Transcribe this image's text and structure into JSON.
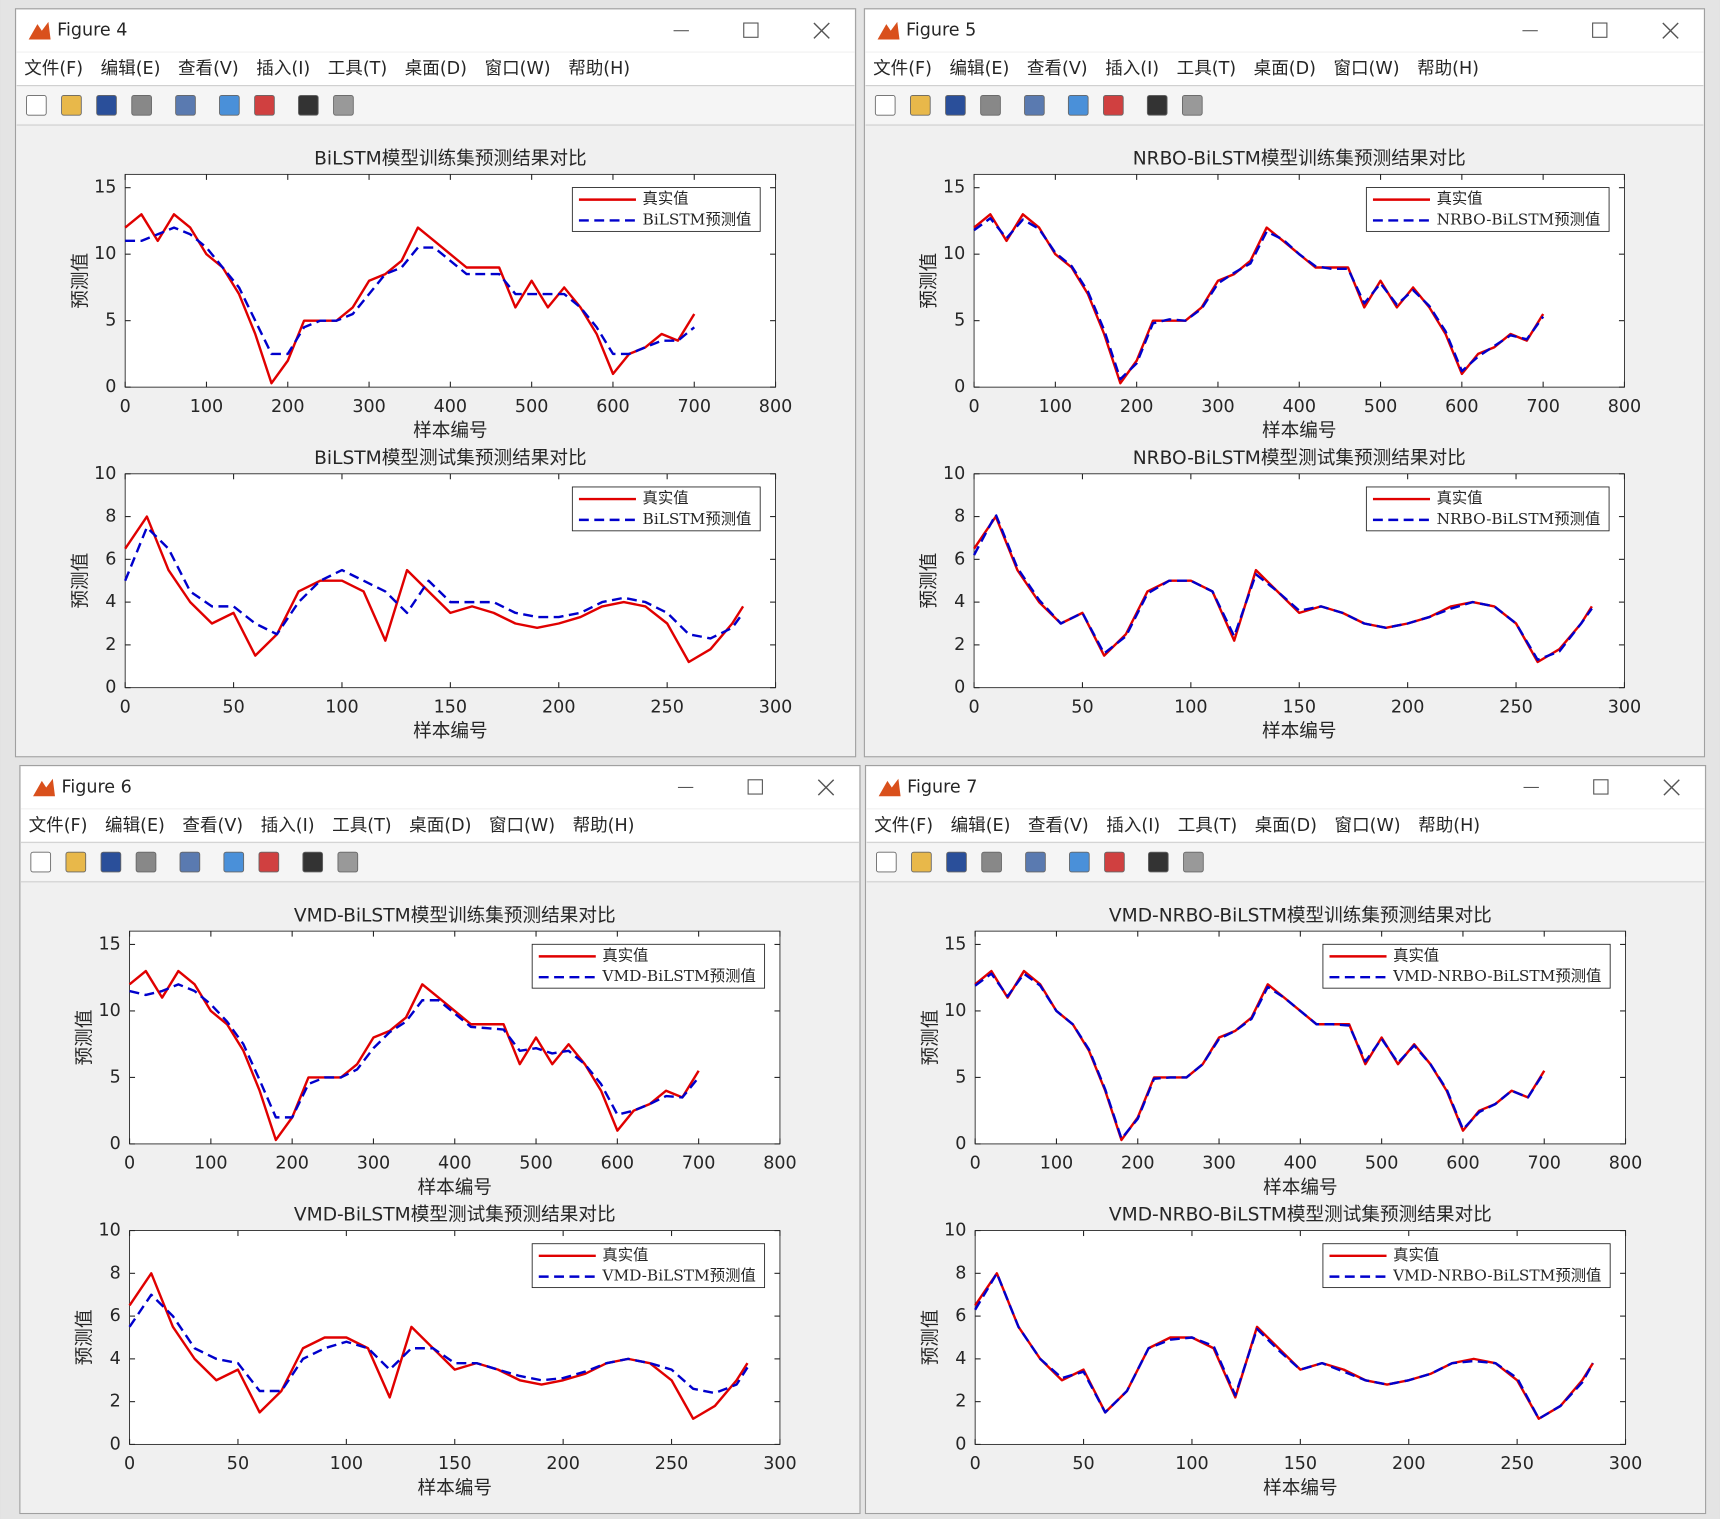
{
  "windows": [
    {
      "title": "Figure 4",
      "menu": [
        "文件(F)",
        "编辑(E)",
        "查看(V)",
        "插入(I)",
        "工具(T)",
        "桌面(D)",
        "窗口(W)",
        "帮助(H)"
      ]
    },
    {
      "title": "Figure 5",
      "menu": [
        "文件(F)",
        "编辑(E)",
        "查看(V)",
        "插入(I)",
        "工具(T)",
        "桌面(D)",
        "窗口(W)",
        "帮助(H)"
      ]
    },
    {
      "title": "Figure 6",
      "menu": [
        "文件(F)",
        "编辑(E)",
        "查看(V)",
        "插入(I)",
        "工具(T)",
        "桌面(D)",
        "窗口(W)",
        "帮助(H)"
      ]
    },
    {
      "title": "Figure 7",
      "menu": [
        "文件(F)",
        "编辑(E)",
        "查看(V)",
        "插入(I)",
        "工具(T)",
        "桌面(D)",
        "窗口(W)",
        "帮助(H)"
      ]
    }
  ],
  "chart_data": [
    {
      "type": "line",
      "title": "BiLSTM模型训练集预测结果对比",
      "xlabel": "样本编号",
      "ylabel": "预测值",
      "legend": "upper right",
      "xlim": [
        0,
        800
      ],
      "xticks": [
        0,
        100,
        200,
        300,
        400,
        500,
        600,
        700,
        800
      ],
      "ylim": [
        0,
        16
      ],
      "yticks": [
        0,
        5,
        10,
        15
      ],
      "x": [
        0,
        20,
        40,
        60,
        80,
        100,
        120,
        140,
        160,
        180,
        200,
        220,
        240,
        260,
        280,
        300,
        320,
        340,
        360,
        380,
        400,
        420,
        440,
        460,
        480,
        500,
        520,
        540,
        560,
        580,
        600,
        620,
        640,
        660,
        680,
        700
      ],
      "series": [
        {
          "name": "真实值",
          "color": "#e00000",
          "linestyle": "solid",
          "values": [
            12,
            13,
            11,
            13,
            12,
            10,
            9,
            7,
            4,
            0.3,
            2,
            5,
            5,
            5,
            6,
            8,
            8.5,
            9.5,
            12,
            11,
            10,
            9,
            9,
            9,
            6,
            8,
            6,
            7.5,
            6,
            4,
            1,
            2.5,
            3,
            4,
            3.5,
            5.5
          ]
        },
        {
          "name": "BiLSTM预测值",
          "color": "#0000cc",
          "linestyle": "dashed",
          "values": [
            11,
            11,
            11.5,
            12,
            11.5,
            10.5,
            9,
            7.5,
            5,
            2.5,
            2.5,
            4.5,
            5,
            5,
            5.5,
            7,
            8.5,
            9,
            10.5,
            10.5,
            9.5,
            8.5,
            8.5,
            8.5,
            7,
            7,
            7,
            7,
            6,
            4.5,
            2.5,
            2.5,
            3,
            3.5,
            3.5,
            4.5
          ]
        }
      ]
    },
    {
      "type": "line",
      "title": "BiLSTM模型测试集预测结果对比",
      "xlabel": "样本编号",
      "ylabel": "预测值",
      "legend": "upper right",
      "xlim": [
        0,
        300
      ],
      "xticks": [
        0,
        50,
        100,
        150,
        200,
        250,
        300
      ],
      "ylim": [
        0,
        10
      ],
      "yticks": [
        0,
        2,
        4,
        6,
        8,
        10
      ],
      "x": [
        0,
        10,
        20,
        30,
        40,
        50,
        60,
        70,
        80,
        90,
        100,
        110,
        120,
        130,
        140,
        150,
        160,
        170,
        180,
        190,
        200,
        210,
        220,
        230,
        240,
        250,
        260,
        270,
        280,
        285
      ],
      "series": [
        {
          "name": "真实值",
          "color": "#e00000",
          "linestyle": "solid",
          "values": [
            6.5,
            8,
            5.5,
            4,
            3,
            3.5,
            1.5,
            2.5,
            4.5,
            5,
            5,
            4.5,
            2.2,
            5.5,
            4.5,
            3.5,
            3.8,
            3.5,
            3,
            2.8,
            3,
            3.3,
            3.8,
            4,
            3.8,
            3,
            1.2,
            1.8,
            3,
            3.8
          ]
        },
        {
          "name": "BiLSTM预测值",
          "color": "#0000cc",
          "linestyle": "dashed",
          "values": [
            5,
            7.5,
            6.5,
            4.5,
            3.8,
            3.8,
            3,
            2.5,
            4,
            5,
            5.5,
            5,
            4.5,
            3.5,
            5,
            4,
            4,
            4,
            3.5,
            3.3,
            3.3,
            3.5,
            4,
            4.2,
            4,
            3.5,
            2.5,
            2.3,
            2.8,
            3.5
          ]
        }
      ]
    },
    {
      "type": "line",
      "title": "NRBO-BiLSTM模型训练集预测结果对比",
      "xlabel": "样本编号",
      "ylabel": "预测值",
      "legend": "upper right",
      "xlim": [
        0,
        800
      ],
      "xticks": [
        0,
        100,
        200,
        300,
        400,
        500,
        600,
        700,
        800
      ],
      "ylim": [
        0,
        16
      ],
      "yticks": [
        0,
        5,
        10,
        15
      ],
      "x": [
        0,
        20,
        40,
        60,
        80,
        100,
        120,
        140,
        160,
        180,
        200,
        220,
        240,
        260,
        280,
        300,
        320,
        340,
        360,
        380,
        400,
        420,
        440,
        460,
        480,
        500,
        520,
        540,
        560,
        580,
        600,
        620,
        640,
        660,
        680,
        700
      ],
      "series": [
        {
          "name": "真实值",
          "color": "#e00000",
          "linestyle": "solid",
          "values": [
            12,
            13,
            11,
            13,
            12,
            10,
            9,
            7,
            4,
            0.3,
            2,
            5,
            5,
            5,
            6,
            8,
            8.5,
            9.5,
            12,
            11,
            10,
            9,
            9,
            9,
            6,
            8,
            6,
            7.5,
            6,
            4,
            1,
            2.5,
            3,
            4,
            3.5,
            5.5
          ]
        },
        {
          "name": "NRBO-BiLSTM预测值",
          "color": "#0000cc",
          "linestyle": "dashed",
          "values": [
            11.8,
            12.7,
            11.2,
            12.6,
            11.9,
            10.1,
            9.1,
            7.2,
            4.3,
            0.6,
            1.8,
            4.8,
            5.1,
            5,
            5.9,
            7.8,
            8.6,
            9.3,
            11.7,
            11.1,
            10,
            9.1,
            8.9,
            8.9,
            6.3,
            7.8,
            6.2,
            7.3,
            6.1,
            4.2,
            1.2,
            2.3,
            3.1,
            3.9,
            3.6,
            5.3
          ]
        }
      ]
    },
    {
      "type": "line",
      "title": "NRBO-BiLSTM模型测试集预测结果对比",
      "xlabel": "样本编号",
      "ylabel": "预测值",
      "legend": "upper right",
      "xlim": [
        0,
        300
      ],
      "xticks": [
        0,
        50,
        100,
        150,
        200,
        250,
        300
      ],
      "ylim": [
        0,
        10
      ],
      "yticks": [
        0,
        2,
        4,
        6,
        8,
        10
      ],
      "x": [
        0,
        10,
        20,
        30,
        40,
        50,
        60,
        70,
        80,
        90,
        100,
        110,
        120,
        130,
        140,
        150,
        160,
        170,
        180,
        190,
        200,
        210,
        220,
        230,
        240,
        250,
        260,
        270,
        280,
        285
      ],
      "series": [
        {
          "name": "真实值",
          "color": "#e00000",
          "linestyle": "solid",
          "values": [
            6.5,
            8,
            5.5,
            4,
            3,
            3.5,
            1.5,
            2.5,
            4.5,
            5,
            5,
            4.5,
            2.2,
            5.5,
            4.5,
            3.5,
            3.8,
            3.5,
            3,
            2.8,
            3,
            3.3,
            3.8,
            4,
            3.8,
            3,
            1.2,
            1.8,
            3,
            3.8
          ]
        },
        {
          "name": "NRBO-BiLSTM预测值",
          "color": "#0000cc",
          "linestyle": "dashed",
          "values": [
            6.2,
            8.1,
            5.6,
            4.1,
            3,
            3.5,
            1.6,
            2.4,
            4.4,
            5,
            5,
            4.5,
            2.4,
            5.3,
            4.5,
            3.6,
            3.8,
            3.5,
            3,
            2.8,
            3,
            3.3,
            3.7,
            4,
            3.8,
            3,
            1.3,
            1.7,
            3,
            3.7
          ]
        }
      ]
    },
    {
      "type": "line",
      "title": "VMD-BiLSTM模型训练集预测结果对比",
      "xlabel": "样本编号",
      "ylabel": "预测值",
      "legend": "upper right",
      "xlim": [
        0,
        800
      ],
      "xticks": [
        0,
        100,
        200,
        300,
        400,
        500,
        600,
        700,
        800
      ],
      "ylim": [
        0,
        16
      ],
      "yticks": [
        0,
        5,
        10,
        15
      ],
      "x": [
        0,
        20,
        40,
        60,
        80,
        100,
        120,
        140,
        160,
        180,
        200,
        220,
        240,
        260,
        280,
        300,
        320,
        340,
        360,
        380,
        400,
        420,
        440,
        460,
        480,
        500,
        520,
        540,
        560,
        580,
        600,
        620,
        640,
        660,
        680,
        700
      ],
      "series": [
        {
          "name": "真实值",
          "color": "#e00000",
          "linestyle": "solid",
          "values": [
            12,
            13,
            11,
            13,
            12,
            10,
            9,
            7,
            4,
            0.3,
            2,
            5,
            5,
            5,
            6,
            8,
            8.5,
            9.5,
            12,
            11,
            10,
            9,
            9,
            9,
            6,
            8,
            6,
            7.5,
            6,
            4,
            1,
            2.5,
            3,
            4,
            3.5,
            5.5
          ]
        },
        {
          "name": "VMD-BiLSTM预测值",
          "color": "#0000cc",
          "linestyle": "dashed",
          "values": [
            11.5,
            11.2,
            11.5,
            12,
            11.5,
            10.5,
            9.2,
            7.5,
            4.8,
            2,
            2,
            4.5,
            5,
            5,
            5.6,
            7.2,
            8.4,
            9.2,
            10.8,
            10.8,
            9.8,
            8.8,
            8.7,
            8.6,
            7,
            7.2,
            6.8,
            7,
            6,
            4.5,
            2.2,
            2.5,
            3,
            3.6,
            3.5,
            5
          ]
        }
      ]
    },
    {
      "type": "line",
      "title": "VMD-BiLSTM模型测试集预测结果对比",
      "xlabel": "样本编号",
      "ylabel": "预测值",
      "legend": "upper right",
      "xlim": [
        0,
        300
      ],
      "xticks": [
        0,
        50,
        100,
        150,
        200,
        250,
        300
      ],
      "ylim": [
        0,
        10
      ],
      "yticks": [
        0,
        2,
        4,
        6,
        8,
        10
      ],
      "x": [
        0,
        10,
        20,
        30,
        40,
        50,
        60,
        70,
        80,
        90,
        100,
        110,
        120,
        130,
        140,
        150,
        160,
        170,
        180,
        190,
        200,
        210,
        220,
        230,
        240,
        250,
        260,
        270,
        280,
        285
      ],
      "series": [
        {
          "name": "真实值",
          "color": "#e00000",
          "linestyle": "solid",
          "values": [
            6.5,
            8,
            5.5,
            4,
            3,
            3.5,
            1.5,
            2.5,
            4.5,
            5,
            5,
            4.5,
            2.2,
            5.5,
            4.5,
            3.5,
            3.8,
            3.5,
            3,
            2.8,
            3,
            3.3,
            3.8,
            4,
            3.8,
            3,
            1.2,
            1.8,
            3,
            3.8
          ]
        },
        {
          "name": "VMD-BiLSTM预测值",
          "color": "#0000cc",
          "linestyle": "dashed",
          "values": [
            5.5,
            7,
            6,
            4.5,
            4,
            3.8,
            2.5,
            2.5,
            4,
            4.5,
            4.8,
            4.5,
            3.5,
            4.5,
            4.5,
            3.8,
            3.8,
            3.5,
            3.2,
            3,
            3.1,
            3.4,
            3.8,
            4,
            3.8,
            3.5,
            2.6,
            2.4,
            2.8,
            3.6
          ]
        }
      ]
    },
    {
      "type": "line",
      "title": "VMD-NRBO-BiLSTM模型训练集预测结果对比",
      "xlabel": "样本编号",
      "ylabel": "预测值",
      "legend": "upper right",
      "xlim": [
        0,
        800
      ],
      "xticks": [
        0,
        100,
        200,
        300,
        400,
        500,
        600,
        700,
        800
      ],
      "ylim": [
        0,
        16
      ],
      "yticks": [
        0,
        5,
        10,
        15
      ],
      "x": [
        0,
        20,
        40,
        60,
        80,
        100,
        120,
        140,
        160,
        180,
        200,
        220,
        240,
        260,
        280,
        300,
        320,
        340,
        360,
        380,
        400,
        420,
        440,
        460,
        480,
        500,
        520,
        540,
        560,
        580,
        600,
        620,
        640,
        660,
        680,
        700
      ],
      "series": [
        {
          "name": "真实值",
          "color": "#e00000",
          "linestyle": "solid",
          "values": [
            12,
            13,
            11,
            13,
            12,
            10,
            9,
            7,
            4,
            0.3,
            2,
            5,
            5,
            5,
            6,
            8,
            8.5,
            9.5,
            12,
            11,
            10,
            9,
            9,
            9,
            6,
            8,
            6,
            7.5,
            6,
            4,
            1,
            2.5,
            3,
            4,
            3.5,
            5.5
          ]
        },
        {
          "name": "VMD-NRBO-BiLSTM预测值",
          "color": "#0000cc",
          "linestyle": "dashed",
          "values": [
            11.9,
            12.8,
            11.1,
            12.8,
            11.9,
            10,
            9,
            7.1,
            4.1,
            0.4,
            1.9,
            4.9,
            5,
            5,
            6,
            7.9,
            8.5,
            9.4,
            11.8,
            11,
            10,
            9,
            9,
            8.9,
            6.2,
            7.9,
            6.1,
            7.4,
            6,
            4.1,
            1.1,
            2.4,
            3,
            4,
            3.5,
            5.4
          ]
        }
      ]
    },
    {
      "type": "line",
      "title": "VMD-NRBO-BiLSTM模型测试集预测结果对比",
      "xlabel": "样本编号",
      "ylabel": "预测值",
      "legend": "upper right",
      "xlim": [
        0,
        300
      ],
      "xticks": [
        0,
        50,
        100,
        150,
        200,
        250,
        300
      ],
      "ylim": [
        0,
        10
      ],
      "yticks": [
        0,
        2,
        4,
        6,
        8,
        10
      ],
      "x": [
        0,
        10,
        20,
        30,
        40,
        50,
        60,
        70,
        80,
        90,
        100,
        110,
        120,
        130,
        140,
        150,
        160,
        170,
        180,
        190,
        200,
        210,
        220,
        230,
        240,
        250,
        260,
        270,
        280,
        285
      ],
      "series": [
        {
          "name": "真实值",
          "color": "#e00000",
          "linestyle": "solid",
          "values": [
            6.5,
            8,
            5.5,
            4,
            3,
            3.5,
            1.5,
            2.5,
            4.5,
            5,
            5,
            4.5,
            2.2,
            5.5,
            4.5,
            3.5,
            3.8,
            3.5,
            3,
            2.8,
            3,
            3.3,
            3.8,
            4,
            3.8,
            3,
            1.2,
            1.8,
            3,
            3.8
          ]
        },
        {
          "name": "VMD-NRBO-BiLSTM预测值",
          "color": "#0000cc",
          "linestyle": "dashed",
          "values": [
            6.3,
            8,
            5.5,
            4,
            3.1,
            3.4,
            1.5,
            2.5,
            4.5,
            4.9,
            5,
            4.6,
            2.3,
            5.4,
            4.4,
            3.5,
            3.8,
            3.4,
            3,
            2.8,
            3,
            3.3,
            3.8,
            3.9,
            3.8,
            3.1,
            1.2,
            1.8,
            2.9,
            3.8
          ]
        }
      ]
    }
  ]
}
